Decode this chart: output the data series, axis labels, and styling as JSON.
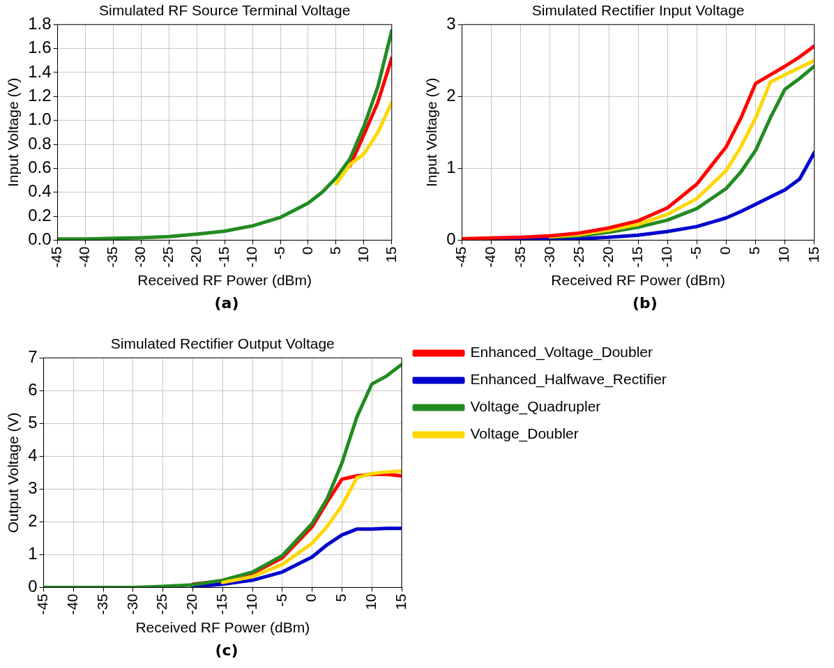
{
  "chart_data": [
    {
      "type": "line",
      "title": "Simulated RF Source Terminal Voltage",
      "xlabel": "Received RF Power (dBm)",
      "ylabel": "Input Voltage (V)",
      "annotations": [
        "(a)"
      ],
      "x": [
        -45,
        -40,
        -35,
        -30,
        -25,
        -20,
        -15,
        -10,
        -5,
        0,
        2.5,
        5,
        7.5,
        10,
        12.5,
        15
      ],
      "xlim": [
        -45,
        15
      ],
      "xticks": [
        -45,
        -40,
        -35,
        -30,
        -25,
        -20,
        -15,
        -10,
        -5,
        0,
        5,
        10,
        15
      ],
      "ylim": [
        0,
        1.8
      ],
      "yticks": [
        {
          "value": 0,
          "label": "0.0"
        },
        0.2,
        0.4,
        0.6,
        0.8,
        {
          "value": 1,
          "label": "1.0"
        },
        1.2,
        1.4,
        1.6,
        1.8
      ],
      "grid": true,
      "line_style": "solid",
      "marker": "none",
      "series": [
        {
          "color": "#ff0000",
          "values": [
            null,
            null,
            null,
            null,
            null,
            null,
            null,
            null,
            null,
            null,
            null,
            null,
            0.62,
            0.88,
            1.15,
            1.52
          ]
        },
        {
          "color": "#ffd700",
          "values": [
            null,
            null,
            null,
            null,
            null,
            null,
            null,
            null,
            null,
            null,
            null,
            0.47,
            0.63,
            0.72,
            0.9,
            1.15
          ]
        },
        {
          "color": "#228b22",
          "values": [
            0.01,
            0.01,
            0.015,
            0.02,
            0.03,
            0.05,
            0.075,
            0.12,
            0.19,
            0.31,
            0.4,
            0.52,
            0.68,
            0.95,
            1.28,
            1.75
          ]
        }
      ]
    },
    {
      "type": "line",
      "title": "Simulated Rectifier Input Voltage",
      "xlabel": "Received RF Power (dBm)",
      "ylabel": "Input Voltage (V)",
      "annotations": [
        "(b)"
      ],
      "x": [
        -45,
        -40,
        -35,
        -30,
        -25,
        -20,
        -15,
        -10,
        -5,
        0,
        2.5,
        5,
        7.5,
        10,
        12.5,
        15
      ],
      "xlim": [
        -45,
        15
      ],
      "xticks": [
        -45,
        -40,
        -35,
        -30,
        -25,
        -20,
        -15,
        -10,
        -5,
        0,
        5,
        10,
        15
      ],
      "ylim": [
        0,
        3
      ],
      "yticks": [
        0,
        1,
        2,
        3
      ],
      "grid": true,
      "line_style": "solid",
      "marker": "none",
      "series": [
        {
          "color": "#0000cd",
          "values": [
            0,
            0,
            0.01,
            0.01,
            0.02,
            0.04,
            0.07,
            0.12,
            0.19,
            0.31,
            0.4,
            0.5,
            0.6,
            0.7,
            0.85,
            1.22
          ]
        },
        {
          "color": "#228b22",
          "values": [
            null,
            null,
            null,
            0.04,
            0.06,
            0.11,
            0.18,
            0.28,
            0.44,
            0.72,
            0.95,
            1.25,
            1.7,
            2.1,
            2.25,
            2.42
          ]
        },
        {
          "color": "#ffd700",
          "values": [
            null,
            null,
            null,
            0.05,
            0.08,
            0.14,
            0.22,
            0.36,
            0.58,
            0.97,
            1.3,
            1.7,
            2.2,
            2.3,
            2.4,
            2.5
          ]
        },
        {
          "color": "#ff0000",
          "values": [
            0.02,
            0.03,
            0.04,
            0.06,
            0.1,
            0.17,
            0.27,
            0.45,
            0.78,
            1.3,
            1.7,
            2.18,
            2.3,
            2.42,
            2.55,
            2.7
          ]
        }
      ]
    },
    {
      "type": "line",
      "title": "Simulated Rectifier Output Voltage",
      "xlabel": "Received RF Power (dBm)",
      "ylabel": "Output Voltage (V)",
      "annotations": [
        "(c)"
      ],
      "x": [
        -45,
        -40,
        -35,
        -30,
        -25,
        -20,
        -15,
        -10,
        -5,
        0,
        2.5,
        5,
        7.5,
        10,
        12.5,
        15
      ],
      "xlim": [
        -45,
        15
      ],
      "xticks": [
        -45,
        -40,
        -35,
        -30,
        -25,
        -20,
        -15,
        -10,
        -5,
        0,
        5,
        10,
        15
      ],
      "ylim": [
        0,
        7
      ],
      "yticks": [
        0,
        1,
        2,
        3,
        4,
        5,
        6,
        7
      ],
      "grid": true,
      "line_style": "solid",
      "marker": "none",
      "legend": "right",
      "series": [
        {
          "name": "Enhanced_Voltage_Doubler",
          "color": "#ff0000",
          "values": [
            null,
            null,
            null,
            null,
            null,
            0.1,
            0.2,
            0.43,
            0.9,
            1.85,
            2.6,
            3.3,
            3.4,
            3.45,
            3.45,
            3.4
          ]
        },
        {
          "name": "Enhanced_Halfwave_Rectifier",
          "color": "#0000cd",
          "values": [
            null,
            null,
            null,
            null,
            null,
            0.02,
            0.1,
            0.22,
            0.47,
            0.93,
            1.3,
            1.6,
            1.78,
            1.78,
            1.8,
            1.8
          ]
        },
        {
          "name": "Voltage_Quadrupler",
          "color": "#228b22",
          "values": [
            0,
            0,
            0,
            0,
            0.03,
            0.08,
            0.22,
            0.47,
            0.97,
            1.95,
            2.7,
            3.8,
            5.2,
            6.2,
            6.45,
            6.8
          ]
        },
        {
          "name": "Voltage_Doubler",
          "color": "#ffd700",
          "values": [
            null,
            null,
            null,
            null,
            null,
            null,
            0.15,
            0.33,
            0.7,
            1.35,
            1.85,
            2.5,
            3.35,
            3.47,
            3.52,
            3.55
          ]
        }
      ]
    }
  ]
}
